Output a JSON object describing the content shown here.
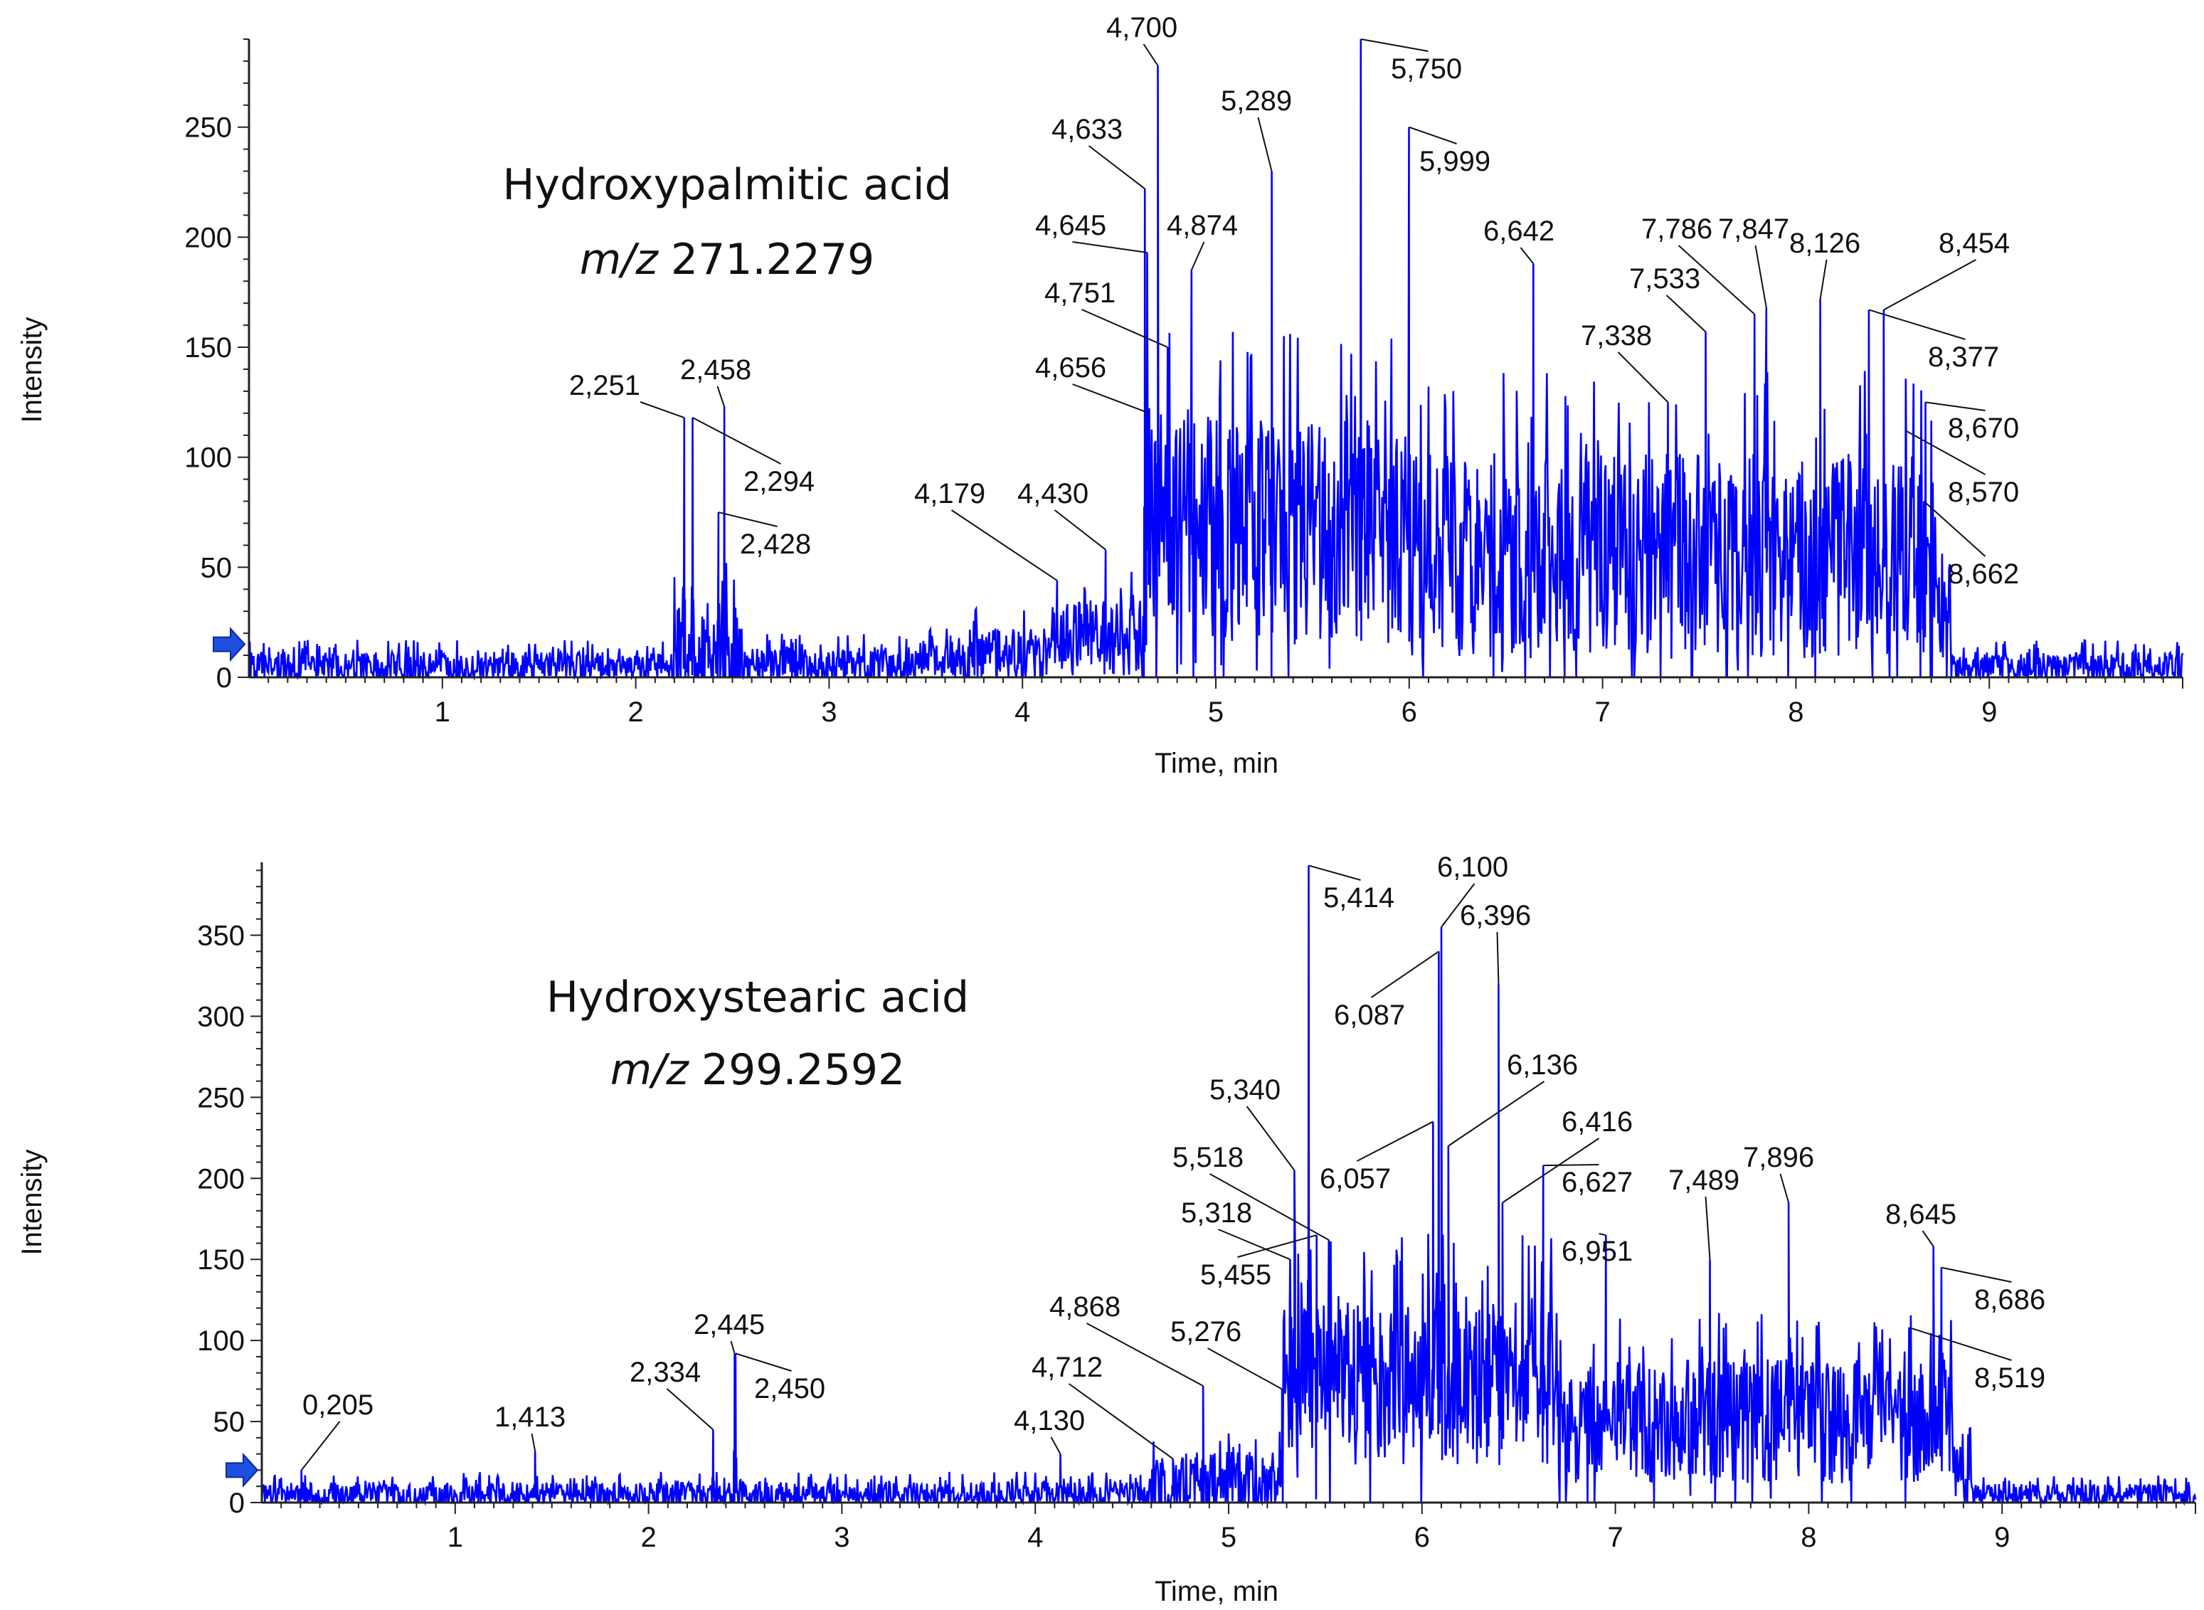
{
  "colors": {
    "trace": "#0000ff",
    "axis": "#222222",
    "text": "#111111",
    "marker": "#1f4fe0"
  },
  "axis_labels": {
    "x": "Time, min",
    "y": "Intensity"
  },
  "chart_data": [
    {
      "type": "line",
      "title": "Hydroxypalmitic acid",
      "subtitle_italic": "m/z",
      "subtitle_value": "271.2279",
      "xlabel": "Time, min",
      "ylabel": "Intensity",
      "xlim": [
        0,
        10
      ],
      "ylim": [
        0,
        290
      ],
      "xticks": [
        1,
        2,
        3,
        4,
        5,
        6,
        7,
        8,
        9
      ],
      "yticks": [
        0,
        50,
        100,
        150,
        200,
        250
      ],
      "baseline_marker": 15,
      "segments": [
        {
          "x0": 0.0,
          "x1": 2.2,
          "base": 5,
          "amp": 12
        },
        {
          "x0": 2.2,
          "x1": 2.55,
          "base": 12,
          "amp": 40
        },
        {
          "x0": 2.55,
          "x1": 3.5,
          "base": 6,
          "amp": 14
        },
        {
          "x0": 3.5,
          "x1": 4.15,
          "base": 10,
          "amp": 22
        },
        {
          "x0": 4.15,
          "x1": 4.64,
          "base": 18,
          "amp": 32
        },
        {
          "x0": 4.64,
          "x1": 5.0,
          "base": 75,
          "amp": 90
        },
        {
          "x0": 5.0,
          "x1": 6.0,
          "base": 65,
          "amp": 95
        },
        {
          "x0": 6.0,
          "x1": 8.72,
          "base": 55,
          "amp": 85
        },
        {
          "x0": 8.72,
          "x1": 8.8,
          "base": 30,
          "amp": 40
        },
        {
          "x0": 8.8,
          "x1": 10.0,
          "base": 5,
          "amp": 12
        }
      ],
      "peaks": [
        {
          "label": "2,251",
          "x": 2.251,
          "y": 118
        },
        {
          "label": "2,294",
          "x": 2.294,
          "y": 118
        },
        {
          "label": "2,428",
          "x": 2.428,
          "y": 75
        },
        {
          "label": "2,458",
          "x": 2.458,
          "y": 123
        },
        {
          "label": "4,179",
          "x": 4.179,
          "y": 44
        },
        {
          "label": "4,430",
          "x": 4.43,
          "y": 58
        },
        {
          "label": "4,633",
          "x": 4.633,
          "y": 222
        },
        {
          "label": "4,645",
          "x": 4.645,
          "y": 193
        },
        {
          "label": "4,656",
          "x": 4.656,
          "y": 120
        },
        {
          "label": "4,700",
          "x": 4.7,
          "y": 278
        },
        {
          "label": "4,751",
          "x": 4.751,
          "y": 150
        },
        {
          "label": "4,874",
          "x": 4.874,
          "y": 185
        },
        {
          "label": "5,289",
          "x": 5.289,
          "y": 230
        },
        {
          "label": "5,750",
          "x": 5.75,
          "y": 290
        },
        {
          "label": "5,999",
          "x": 5.999,
          "y": 250
        },
        {
          "label": "6,642",
          "x": 6.642,
          "y": 188
        },
        {
          "label": "7,338",
          "x": 7.338,
          "y": 125
        },
        {
          "label": "7,533",
          "x": 7.533,
          "y": 157
        },
        {
          "label": "7,786",
          "x": 7.786,
          "y": 165
        },
        {
          "label": "7,847",
          "x": 7.847,
          "y": 168
        },
        {
          "label": "8,126",
          "x": 8.126,
          "y": 172
        },
        {
          "label": "8,377",
          "x": 8.377,
          "y": 167
        },
        {
          "label": "8,454",
          "x": 8.454,
          "y": 167
        },
        {
          "label": "8,570",
          "x": 8.57,
          "y": 112
        },
        {
          "label": "8,662",
          "x": 8.662,
          "y": 80
        },
        {
          "label": "8,670",
          "x": 8.67,
          "y": 125
        }
      ]
    },
    {
      "type": "line",
      "title": "Hydroxystearic acid",
      "subtitle_italic": "m/z",
      "subtitle_value": "299.2592",
      "xlabel": "Time, min",
      "ylabel": "Intensity",
      "xlim": [
        0,
        10
      ],
      "ylim": [
        0,
        395
      ],
      "xticks": [
        1,
        2,
        3,
        4,
        5,
        6,
        7,
        8,
        9
      ],
      "yticks": [
        0,
        50,
        100,
        150,
        200,
        250,
        300,
        350
      ],
      "baseline_marker": 20,
      "segments": [
        {
          "x0": 0.0,
          "x1": 4.6,
          "base": 5,
          "amp": 14
        },
        {
          "x0": 4.6,
          "x1": 5.28,
          "base": 12,
          "amp": 35
        },
        {
          "x0": 5.28,
          "x1": 5.6,
          "base": 80,
          "amp": 90
        },
        {
          "x0": 5.6,
          "x1": 6.7,
          "base": 75,
          "amp": 95
        },
        {
          "x0": 6.7,
          "x1": 8.75,
          "base": 50,
          "amp": 70
        },
        {
          "x0": 8.75,
          "x1": 8.85,
          "base": 25,
          "amp": 40
        },
        {
          "x0": 8.85,
          "x1": 10.0,
          "base": 5,
          "amp": 12
        }
      ],
      "peaks": [
        {
          "label": "0,205",
          "x": 0.205,
          "y": 20
        },
        {
          "label": "1,413",
          "x": 1.413,
          "y": 32
        },
        {
          "label": "2,334",
          "x": 2.334,
          "y": 45
        },
        {
          "label": "2,445",
          "x": 2.445,
          "y": 92
        },
        {
          "label": "2,450",
          "x": 2.45,
          "y": 92
        },
        {
          "label": "4,130",
          "x": 4.13,
          "y": 30
        },
        {
          "label": "4,712",
          "x": 4.712,
          "y": 27
        },
        {
          "label": "4,868",
          "x": 4.868,
          "y": 72
        },
        {
          "label": "5,276",
          "x": 5.276,
          "y": 70
        },
        {
          "label": "5,318",
          "x": 5.318,
          "y": 150
        },
        {
          "label": "5,340",
          "x": 5.34,
          "y": 205
        },
        {
          "label": "5,414",
          "x": 5.414,
          "y": 393
        },
        {
          "label": "5,455",
          "x": 5.455,
          "y": 165
        },
        {
          "label": "5,518",
          "x": 5.518,
          "y": 162
        },
        {
          "label": "6,057",
          "x": 6.057,
          "y": 235
        },
        {
          "label": "6,087",
          "x": 6.087,
          "y": 340
        },
        {
          "label": "6,100",
          "x": 6.1,
          "y": 355
        },
        {
          "label": "6,136",
          "x": 6.136,
          "y": 220
        },
        {
          "label": "6,396",
          "x": 6.396,
          "y": 320
        },
        {
          "label": "6,416",
          "x": 6.416,
          "y": 185
        },
        {
          "label": "6,627",
          "x": 6.627,
          "y": 208
        },
        {
          "label": "6,951",
          "x": 6.951,
          "y": 165
        },
        {
          "label": "7,489",
          "x": 7.489,
          "y": 150
        },
        {
          "label": "7,896",
          "x": 7.896,
          "y": 185
        },
        {
          "label": "8,519",
          "x": 8.519,
          "y": 108
        },
        {
          "label": "8,645",
          "x": 8.645,
          "y": 158
        },
        {
          "label": "8,686",
          "x": 8.686,
          "y": 145
        }
      ]
    }
  ]
}
